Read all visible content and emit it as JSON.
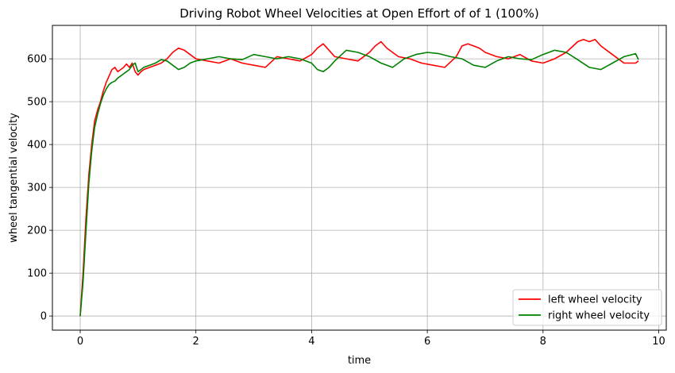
{
  "chart_data": {
    "type": "line",
    "title": "Driving Robot Wheel Velocities at Open Effort of of 1 (100%)",
    "xlabel": "time",
    "ylabel": "wheel tangential velocity",
    "xlim": [
      -0.48,
      10.13
    ],
    "ylim": [
      -33,
      678
    ],
    "xticks": [
      0,
      2,
      4,
      6,
      8,
      10
    ],
    "yticks": [
      0,
      100,
      200,
      300,
      400,
      500,
      600
    ],
    "grid": true,
    "legend_position": "bottom-right",
    "series": [
      {
        "name": "left wheel velocity",
        "color": "#ff0000",
        "x": [
          0,
          0.05,
          0.1,
          0.15,
          0.2,
          0.25,
          0.3,
          0.35,
          0.4,
          0.45,
          0.5,
          0.55,
          0.6,
          0.65,
          0.7,
          0.75,
          0.8,
          0.85,
          0.9,
          0.95,
          1.0,
          1.05,
          1.1,
          1.2,
          1.3,
          1.4,
          1.5,
          1.6,
          1.7,
          1.8,
          1.9,
          2.0,
          2.2,
          2.4,
          2.6,
          2.8,
          3.0,
          3.2,
          3.4,
          3.6,
          3.8,
          4.0,
          4.1,
          4.2,
          4.3,
          4.4,
          4.6,
          4.8,
          5.0,
          5.1,
          5.2,
          5.3,
          5.5,
          5.7,
          5.9,
          6.1,
          6.3,
          6.5,
          6.6,
          6.7,
          6.8,
          6.9,
          7.0,
          7.2,
          7.4,
          7.6,
          7.8,
          8.0,
          8.2,
          8.4,
          8.6,
          8.7,
          8.8,
          8.9,
          9.0,
          9.2,
          9.4,
          9.6,
          9.65
        ],
        "y": [
          0,
          100,
          230,
          330,
          400,
          455,
          480,
          500,
          525,
          545,
          560,
          575,
          580,
          570,
          575,
          580,
          588,
          580,
          590,
          570,
          562,
          570,
          575,
          580,
          585,
          590,
          600,
          615,
          625,
          620,
          610,
          600,
          595,
          590,
          600,
          590,
          585,
          580,
          605,
          600,
          595,
          610,
          625,
          635,
          620,
          605,
          600,
          595,
          615,
          630,
          640,
          625,
          605,
          600,
          590,
          585,
          580,
          605,
          630,
          635,
          630,
          625,
          615,
          605,
          600,
          610,
          595,
          590,
          600,
          615,
          640,
          645,
          640,
          645,
          630,
          610,
          590,
          590,
          595
        ]
      },
      {
        "name": "right wheel velocity",
        "color": "#008000",
        "x": [
          0,
          0.05,
          0.1,
          0.15,
          0.2,
          0.25,
          0.3,
          0.35,
          0.4,
          0.45,
          0.5,
          0.55,
          0.6,
          0.65,
          0.7,
          0.75,
          0.8,
          0.85,
          0.9,
          0.95,
          1.0,
          1.05,
          1.1,
          1.2,
          1.3,
          1.4,
          1.5,
          1.6,
          1.7,
          1.8,
          1.9,
          2.0,
          2.2,
          2.4,
          2.6,
          2.8,
          3.0,
          3.2,
          3.4,
          3.6,
          3.8,
          4.0,
          4.1,
          4.2,
          4.3,
          4.4,
          4.6,
          4.8,
          5.0,
          5.2,
          5.4,
          5.6,
          5.8,
          6.0,
          6.2,
          6.4,
          6.6,
          6.8,
          7.0,
          7.2,
          7.4,
          7.6,
          7.8,
          8.0,
          8.2,
          8.4,
          8.6,
          8.8,
          9.0,
          9.2,
          9.4,
          9.6,
          9.65
        ],
        "y": [
          0,
          80,
          200,
          310,
          385,
          440,
          470,
          495,
          515,
          530,
          540,
          545,
          548,
          555,
          560,
          565,
          570,
          575,
          585,
          590,
          570,
          575,
          580,
          585,
          590,
          598,
          595,
          585,
          575,
          580,
          590,
          595,
          600,
          605,
          600,
          598,
          610,
          605,
          600,
          605,
          600,
          590,
          575,
          570,
          580,
          595,
          620,
          615,
          605,
          590,
          580,
          600,
          610,
          615,
          612,
          605,
          600,
          585,
          580,
          595,
          605,
          600,
          598,
          610,
          620,
          615,
          598,
          580,
          575,
          590,
          605,
          612,
          598
        ]
      }
    ]
  }
}
